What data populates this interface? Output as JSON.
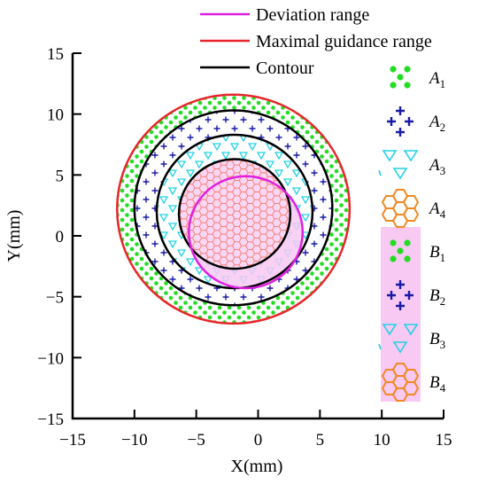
{
  "colors": {
    "deviation": "#e020e0",
    "maximal": "#e8262a",
    "contour": "#000000",
    "dots": "#22dd22",
    "plus": "#1a1aa8",
    "tri": "#22d2e6",
    "hex": "#f08a24",
    "hexB": "#f47a6a",
    "pink": "#f7c9f3"
  },
  "chart_data": {
    "type": "scatter",
    "xlabel": "X(mm)",
    "ylabel": "Y(mm)",
    "xlim": [
      -15,
      15
    ],
    "ylim": [
      -15,
      15
    ],
    "x_ticks": [
      -15,
      -10,
      -5,
      0,
      5,
      10,
      15
    ],
    "y_ticks": [
      -15,
      -10,
      -5,
      0,
      5,
      10,
      15
    ],
    "x_tick_labels": [
      "−15",
      "−10",
      "−5",
      "0",
      "5",
      "10",
      "15"
    ],
    "y_tick_labels": [
      "−15",
      "−10",
      "−5",
      "0",
      "5",
      "10",
      "15"
    ],
    "legend": [
      {
        "label": "Deviation range",
        "color": "#e020e0"
      },
      {
        "label": "Maximal guidance range",
        "color": "#e8262a"
      },
      {
        "label": "Contour",
        "color": "#000000"
      }
    ],
    "legend_position": "top",
    "circles": [
      {
        "name": "Maximal guidance range",
        "cx": -2.0,
        "cy": 2.2,
        "r": 9.4
      },
      {
        "name": "Contour",
        "cx": -2.0,
        "cy": 2.3,
        "r": 8.0
      },
      {
        "name": "Contour",
        "cx": -1.9,
        "cy": 2.0,
        "r": 6.3
      },
      {
        "name": "Contour",
        "cx": -1.9,
        "cy": 1.8,
        "r": 4.5
      },
      {
        "name": "Deviation range",
        "cx": -1.0,
        "cy": 0.3,
        "r": 4.6
      }
    ],
    "region_labels": [
      {
        "letter": "A",
        "sub": "1"
      },
      {
        "letter": "A",
        "sub": "2"
      },
      {
        "letter": "A",
        "sub": "3"
      },
      {
        "letter": "A",
        "sub": "4"
      },
      {
        "letter": "B",
        "sub": "1"
      },
      {
        "letter": "B",
        "sub": "2"
      },
      {
        "letter": "B",
        "sub": "3"
      },
      {
        "letter": "B",
        "sub": "4"
      }
    ]
  }
}
